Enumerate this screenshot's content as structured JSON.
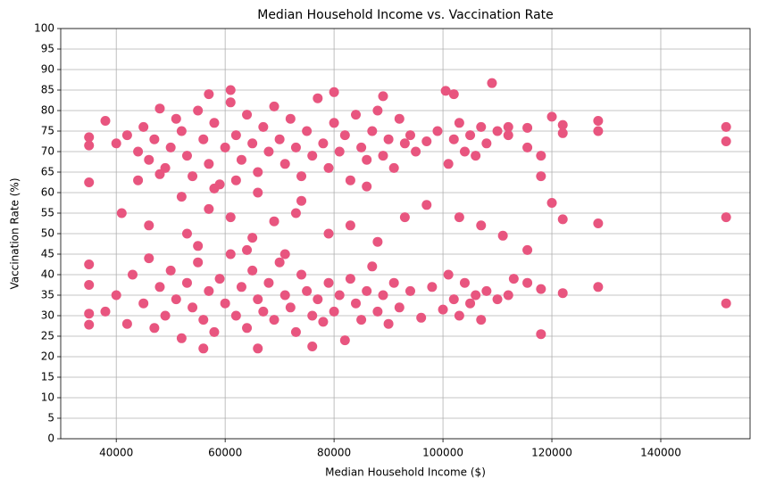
{
  "chart_data": {
    "type": "scatter",
    "title": "Median Household Income vs. Vaccination Rate",
    "x_label": "Median Household Income ($)",
    "y_label": "Vaccination Rate (%)",
    "color": "#e8557f",
    "grid": true,
    "xlim": [
      29800,
      156400
    ],
    "ylim": [
      0,
      100
    ],
    "xticks": [
      40000,
      60000,
      80000,
      100000,
      120000,
      140000
    ],
    "yticks": [
      0,
      5,
      10,
      15,
      20,
      25,
      30,
      35,
      40,
      45,
      50,
      55,
      60,
      65,
      70,
      75,
      80,
      85,
      90,
      95,
      100
    ],
    "x": [
      152000,
      152000,
      152000,
      152000,
      128500,
      128500,
      128500,
      128500,
      122000,
      122000,
      122000,
      122000,
      120000,
      120000,
      118000,
      118000,
      118000,
      118000,
      115500,
      115500,
      115500,
      115500,
      109000,
      35000,
      35000,
      35000,
      35000,
      35000,
      35000,
      35000,
      100500,
      102000,
      80000,
      61000,
      57000,
      76000,
      66000,
      56000,
      89000,
      38000,
      40000,
      42000,
      44000,
      45000,
      46000,
      47000,
      48000,
      49000,
      50000,
      51000,
      52000,
      53000,
      54000,
      55000,
      56000,
      57000,
      58000,
      59000,
      60000,
      61000,
      62000,
      63000,
      64000,
      65000,
      66000,
      67000,
      68000,
      69000,
      70000,
      71000,
      72000,
      73000,
      74000,
      75000,
      76000,
      77000,
      78000,
      79000,
      80000,
      81000,
      82000,
      83000,
      84000,
      85000,
      86000,
      87000,
      88000,
      89000,
      90000,
      91000,
      92000,
      93000,
      94000,
      95000,
      97000,
      99000,
      101000,
      102000,
      103000,
      104000,
      105000,
      106000,
      107000,
      108000,
      110000,
      112000,
      112000,
      44000,
      52000,
      58000,
      66000,
      74000,
      86000,
      48000,
      62000,
      41000,
      46000,
      53000,
      57000,
      61000,
      65000,
      69000,
      73000,
      79000,
      83000,
      88000,
      93000,
      97000,
      103000,
      107000,
      111000,
      55000,
      64000,
      71000,
      38000,
      40000,
      42000,
      43000,
      45000,
      46000,
      47000,
      48000,
      49000,
      50000,
      51000,
      52000,
      53000,
      54000,
      55000,
      56000,
      57000,
      58000,
      59000,
      60000,
      61000,
      62000,
      63000,
      64000,
      65000,
      66000,
      67000,
      68000,
      69000,
      70000,
      71000,
      72000,
      73000,
      74000,
      75000,
      76000,
      77000,
      78000,
      79000,
      80000,
      81000,
      82000,
      83000,
      84000,
      85000,
      86000,
      87000,
      88000,
      89000,
      90000,
      91000,
      92000,
      94000,
      96000,
      98000,
      100000,
      101000,
      102000,
      103000,
      104000,
      105000,
      106000,
      107000,
      108000,
      110000,
      112000,
      113000
    ],
    "values": [
      76,
      72.5,
      54,
      33,
      77.5,
      75,
      52.5,
      37,
      76.5,
      74.5,
      53.5,
      35.5,
      78.5,
      57.5,
      69,
      64,
      36.5,
      25.5,
      75.8,
      71,
      46,
      38,
      86.7,
      73.5,
      71.5,
      62.5,
      42.5,
      37.5,
      30.5,
      27.8,
      84.8,
      84,
      84.5,
      85,
      84,
      22.5,
      22,
      22,
      83.5,
      77.5,
      72,
      74,
      70,
      76,
      68,
      73,
      80.5,
      66,
      71,
      78,
      75,
      69,
      64,
      80,
      73,
      67,
      77,
      62,
      71,
      82,
      74,
      68,
      79,
      72,
      65,
      76,
      70,
      81,
      73,
      67,
      78,
      71,
      64,
      75,
      69,
      83,
      72,
      66,
      77,
      70,
      74,
      63,
      79,
      71,
      68,
      75,
      80,
      69,
      73,
      66,
      78,
      72,
      74,
      70,
      72.5,
      75,
      67,
      73,
      77,
      70,
      74,
      69,
      76,
      72,
      75,
      74,
      76,
      63,
      59,
      61,
      60,
      58,
      61.5,
      64.5,
      63,
      55,
      52,
      50,
      56,
      54,
      49,
      53,
      55,
      50,
      52,
      48,
      54,
      57,
      54,
      52,
      49.5,
      47,
      46,
      45,
      31,
      35,
      28,
      40,
      33,
      44,
      27,
      37,
      30,
      41,
      34,
      24.5,
      38,
      32,
      43,
      29,
      36,
      26,
      39,
      33,
      45,
      30,
      37,
      27,
      41,
      34,
      31,
      38,
      29,
      43,
      35,
      32,
      26,
      40,
      36,
      30,
      34,
      28.5,
      38,
      31,
      35,
      24,
      39,
      33,
      29,
      36,
      42,
      31,
      35,
      28,
      38,
      32,
      36,
      29.5,
      37,
      31.5,
      40,
      34,
      30,
      38,
      33,
      35,
      29,
      36,
      34,
      35,
      39
    ]
  }
}
